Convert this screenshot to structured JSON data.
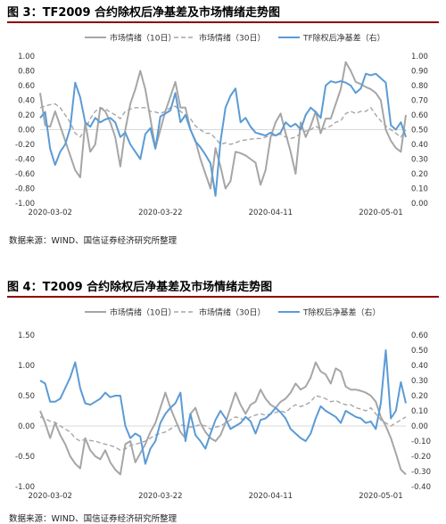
{
  "figures": [
    {
      "title": "图 3：TF2009 合约除权后净基差及市场情绪走势图",
      "source": "数据来源：WIND、国信证券经济研究所整理"
    },
    {
      "title": "图 4：T2009 合约除权后净基差及市场情绪走势图",
      "source": "数据来源：WIND、国信证券经济研究所整理"
    }
  ],
  "colors": {
    "gray": "#a6a6a6",
    "blue": "#5b9bd5",
    "title_rule": "#8b0000"
  },
  "chart_data": [
    {
      "type": "line",
      "x_ticks": [
        "2020-03-02",
        "2020-03-22",
        "2020-04-11",
        "2020-05-01"
      ],
      "y_left_ticks": [
        "-1.00",
        "-0.80",
        "-0.60",
        "-0.40",
        "-0.20",
        "0.00",
        "0.20",
        "0.40",
        "0.60",
        "0.80",
        "1.00"
      ],
      "y_right_ticks": [
        "0.00",
        "0.10",
        "0.20",
        "0.30",
        "0.40",
        "0.50",
        "0.60",
        "0.70",
        "0.80",
        "0.90",
        "1.00"
      ],
      "ylim_left": [
        -1.0,
        1.0
      ],
      "ylim_right": [
        0.0,
        1.0
      ],
      "legend_position": "top",
      "series": [
        {
          "name": "市场情绪（10日）",
          "axis": "left",
          "style": "solid",
          "color": "#a6a6a6",
          "x": [
            0,
            1,
            2,
            3,
            4,
            5,
            6,
            7,
            8,
            9,
            10,
            11,
            12,
            13,
            14,
            15,
            16,
            17,
            18,
            19,
            20,
            21,
            22,
            23,
            24,
            25,
            26,
            27,
            28,
            29,
            30,
            31,
            32,
            33,
            34,
            35,
            36,
            37,
            38,
            39,
            40,
            41,
            42,
            43,
            44,
            45,
            46,
            47,
            48,
            49,
            50,
            51,
            52,
            53,
            54,
            55,
            56,
            57,
            58,
            59,
            60,
            61,
            62,
            63,
            64,
            65,
            66,
            67,
            68,
            69,
            70,
            71,
            72,
            73
          ],
          "y": [
            0.5,
            0.06,
            0.04,
            0.25,
            0.05,
            -0.15,
            -0.35,
            -0.55,
            -0.65,
            0.1,
            -0.3,
            -0.2,
            0.3,
            0.25,
            0.1,
            -0.1,
            -0.5,
            0.0,
            0.35,
            0.55,
            0.8,
            0.55,
            0.15,
            -0.25,
            0.0,
            0.25,
            0.45,
            0.65,
            0.3,
            0.3,
            0.0,
            -0.15,
            -0.4,
            -0.6,
            -0.8,
            -0.25,
            -0.5,
            -0.8,
            -0.7,
            -0.3,
            -0.32,
            -0.35,
            -0.4,
            -0.45,
            -0.75,
            -0.55,
            -0.1,
            0.1,
            0.22,
            -0.05,
            -0.3,
            -0.6,
            0.1,
            -0.1,
            0.05,
            0.25,
            -0.05,
            0.15,
            0.15,
            0.35,
            0.55,
            0.92,
            0.8,
            0.65,
            0.62,
            0.58,
            0.55,
            0.5,
            0.4,
            0.0,
            -0.15,
            -0.25,
            -0.3,
            0.2
          ]
        },
        {
          "name": "市场情绪（30日）",
          "axis": "left",
          "style": "dashed",
          "color": "#a6a6a6",
          "x": [
            0,
            1,
            2,
            3,
            4,
            5,
            6,
            7,
            8,
            9,
            10,
            11,
            12,
            13,
            14,
            15,
            16,
            17,
            18,
            19,
            20,
            21,
            22,
            23,
            24,
            25,
            26,
            27,
            28,
            29,
            30,
            31,
            32,
            33,
            34,
            35,
            36,
            37,
            38,
            39,
            40,
            41,
            42,
            43,
            44,
            45,
            46,
            47,
            48,
            49,
            50,
            51,
            52,
            53,
            54,
            55,
            56,
            57,
            58,
            59,
            60,
            61,
            62,
            63,
            64,
            65,
            66,
            67,
            68,
            69,
            70,
            71,
            72,
            73
          ],
          "y": [
            0.3,
            0.32,
            0.34,
            0.35,
            0.3,
            0.2,
            0.1,
            -0.05,
            -0.1,
            0.0,
            0.15,
            0.25,
            0.3,
            0.28,
            0.24,
            0.2,
            0.15,
            0.25,
            0.28,
            0.3,
            0.3,
            0.3,
            0.25,
            0.24,
            0.22,
            0.25,
            0.3,
            0.32,
            0.25,
            0.2,
            0.15,
            0.05,
            0.0,
            -0.05,
            -0.05,
            -0.12,
            -0.2,
            -0.18,
            -0.2,
            -0.18,
            -0.15,
            -0.14,
            -0.13,
            -0.12,
            -0.12,
            -0.1,
            -0.08,
            -0.08,
            -0.06,
            -0.1,
            -0.12,
            -0.1,
            -0.05,
            -0.02,
            0.0,
            0.05,
            0.0,
            0.02,
            0.05,
            0.1,
            0.12,
            0.22,
            0.25,
            0.22,
            0.25,
            0.25,
            0.3,
            0.2,
            0.12,
            0.05,
            0.0,
            -0.05,
            -0.1,
            0.0
          ]
        },
        {
          "name": "TF除权后净基差（右）",
          "axis": "right",
          "style": "solid",
          "color": "#5b9bd5",
          "x": [
            0,
            1,
            2,
            3,
            4,
            5,
            6,
            7,
            8,
            9,
            10,
            11,
            12,
            13,
            14,
            15,
            16,
            17,
            18,
            19,
            20,
            21,
            22,
            23,
            24,
            25,
            26,
            27,
            28,
            29,
            30,
            31,
            32,
            33,
            34,
            35,
            36,
            37,
            38,
            39,
            40,
            41,
            42,
            43,
            44,
            45,
            46,
            47,
            48,
            49,
            50,
            51,
            52,
            53,
            54,
            55,
            56,
            57,
            58,
            59,
            60,
            61,
            62,
            63,
            64,
            65,
            66,
            67,
            68,
            69,
            70,
            71,
            72,
            73
          ],
          "y": [
            0.58,
            0.62,
            0.37,
            0.26,
            0.35,
            0.4,
            0.51,
            0.82,
            0.72,
            0.55,
            0.52,
            0.58,
            0.55,
            0.57,
            0.58,
            0.55,
            0.45,
            0.48,
            0.4,
            0.35,
            0.3,
            0.47,
            0.51,
            0.37,
            0.59,
            0.61,
            0.63,
            0.75,
            0.55,
            0.6,
            0.5,
            0.42,
            0.38,
            0.33,
            0.27,
            0.05,
            0.42,
            0.65,
            0.73,
            0.78,
            0.55,
            0.58,
            0.52,
            0.48,
            0.47,
            0.46,
            0.48,
            0.46,
            0.48,
            0.55,
            0.52,
            0.54,
            0.5,
            0.6,
            0.65,
            0.62,
            0.58,
            0.8,
            0.83,
            0.82,
            0.83,
            0.82,
            0.8,
            0.75,
            0.78,
            0.88,
            0.87,
            0.88,
            0.85,
            0.82,
            0.53,
            0.5,
            0.55,
            0.45
          ]
        }
      ]
    },
    {
      "type": "line",
      "x_ticks": [
        "2020-03-02",
        "2020-03-22",
        "2020-04-11",
        "2020-05-01"
      ],
      "y_left_ticks": [
        "-1.00",
        "-0.50",
        "0.00",
        "0.50",
        "1.00",
        "1.50"
      ],
      "y_right_ticks": [
        "-0.40",
        "-0.30",
        "-0.20",
        "-0.10",
        "0.00",
        "0.10",
        "0.20",
        "0.30",
        "0.40",
        "0.50",
        "0.60"
      ],
      "ylim_left": [
        -1.0,
        1.5
      ],
      "ylim_right": [
        -0.4,
        0.6
      ],
      "legend_position": "top",
      "series": [
        {
          "name": "市场情绪（10日）",
          "axis": "left",
          "style": "solid",
          "color": "#a6a6a6",
          "x": [
            0,
            1,
            2,
            3,
            4,
            5,
            6,
            7,
            8,
            9,
            10,
            11,
            12,
            13,
            14,
            15,
            16,
            17,
            18,
            19,
            20,
            21,
            22,
            23,
            24,
            25,
            26,
            27,
            28,
            29,
            30,
            31,
            32,
            33,
            34,
            35,
            36,
            37,
            38,
            39,
            40,
            41,
            42,
            43,
            44,
            45,
            46,
            47,
            48,
            49,
            50,
            51,
            52,
            53,
            54,
            55,
            56,
            57,
            58,
            59,
            60,
            61,
            62,
            63,
            64,
            65,
            66,
            67,
            68,
            69,
            70,
            71,
            72,
            73
          ],
          "y": [
            0.25,
            0.05,
            -0.2,
            0.05,
            -0.15,
            -0.3,
            -0.5,
            -0.62,
            -0.7,
            -0.2,
            -0.4,
            -0.5,
            -0.55,
            -0.4,
            -0.6,
            -0.72,
            -0.8,
            -0.3,
            -0.25,
            -0.6,
            -0.45,
            -0.3,
            -0.1,
            0.05,
            0.3,
            0.55,
            0.3,
            0.1,
            -0.1,
            -0.2,
            0.2,
            0.3,
            0.05,
            -0.1,
            -0.2,
            -0.25,
            -0.15,
            0.05,
            0.3,
            0.55,
            0.35,
            0.2,
            0.35,
            0.4,
            0.6,
            0.45,
            0.35,
            0.3,
            0.4,
            0.45,
            0.55,
            0.7,
            0.6,
            0.65,
            0.8,
            1.05,
            0.9,
            0.85,
            0.7,
            0.95,
            0.9,
            0.65,
            0.6,
            0.6,
            0.58,
            0.55,
            0.5,
            0.4,
            0.15,
            0.0,
            -0.2,
            -0.45,
            -0.72,
            -0.8
          ]
        },
        {
          "name": "市场情绪（30日）",
          "axis": "left",
          "style": "dashed",
          "color": "#a6a6a6",
          "x": [
            0,
            1,
            2,
            3,
            4,
            5,
            6,
            7,
            8,
            9,
            10,
            11,
            12,
            13,
            14,
            15,
            16,
            17,
            18,
            19,
            20,
            21,
            22,
            23,
            24,
            25,
            26,
            27,
            28,
            29,
            30,
            31,
            32,
            33,
            34,
            35,
            36,
            37,
            38,
            39,
            40,
            41,
            42,
            43,
            44,
            45,
            46,
            47,
            48,
            49,
            50,
            51,
            52,
            53,
            54,
            55,
            56,
            57,
            58,
            59,
            60,
            61,
            62,
            63,
            64,
            65,
            66,
            67,
            68,
            69,
            70,
            71,
            72,
            73
          ],
          "y": [
            0.15,
            0.12,
            0.08,
            0.06,
            0.0,
            -0.05,
            -0.1,
            -0.2,
            -0.25,
            -0.22,
            -0.24,
            -0.25,
            -0.28,
            -0.3,
            -0.32,
            -0.35,
            -0.4,
            -0.38,
            -0.32,
            -0.3,
            -0.28,
            -0.25,
            -0.2,
            -0.15,
            -0.12,
            -0.1,
            -0.05,
            0.0,
            0.02,
            0.0,
            -0.02,
            0.0,
            0.02,
            0.0,
            -0.05,
            -0.02,
            0.0,
            0.05,
            0.1,
            0.15,
            0.12,
            0.1,
            0.15,
            0.18,
            0.2,
            0.18,
            0.2,
            0.22,
            0.25,
            0.22,
            0.3,
            0.35,
            0.32,
            0.35,
            0.4,
            0.5,
            0.48,
            0.45,
            0.4,
            0.42,
            0.38,
            0.35,
            0.35,
            0.3,
            0.28,
            0.25,
            0.3,
            0.2,
            0.1,
            0.05,
            0.0,
            0.05,
            0.1,
            0.15
          ]
        },
        {
          "name": "T除权后净基差（右）",
          "axis": "right",
          "style": "solid",
          "color": "#5b9bd5",
          "x": [
            0,
            1,
            2,
            3,
            4,
            5,
            6,
            7,
            8,
            9,
            10,
            11,
            12,
            13,
            14,
            15,
            16,
            17,
            18,
            19,
            20,
            21,
            22,
            23,
            24,
            25,
            26,
            27,
            28,
            29,
            30,
            31,
            32,
            33,
            34,
            35,
            36,
            37,
            38,
            39,
            40,
            41,
            42,
            43,
            44,
            45,
            46,
            47,
            48,
            49,
            50,
            51,
            52,
            53,
            54,
            55,
            56,
            57,
            58,
            59,
            60,
            61,
            62,
            63,
            64,
            65,
            66,
            67,
            68,
            69,
            70,
            71,
            72,
            73
          ],
          "y": [
            0.3,
            0.28,
            0.16,
            0.16,
            0.18,
            0.25,
            0.32,
            0.42,
            0.25,
            0.15,
            0.14,
            0.16,
            0.18,
            0.22,
            0.19,
            0.2,
            0.2,
            0.0,
            -0.08,
            -0.05,
            -0.07,
            -0.25,
            -0.15,
            -0.1,
            0.02,
            0.08,
            0.12,
            0.15,
            0.22,
            -0.1,
            0.08,
            -0.06,
            -0.1,
            -0.15,
            -0.05,
            0.04,
            0.1,
            0.05,
            -0.02,
            0.0,
            0.02,
            0.06,
            0.03,
            -0.05,
            0.04,
            0.05,
            0.08,
            0.12,
            0.09,
            0.05,
            -0.02,
            -0.05,
            -0.08,
            -0.1,
            -0.05,
            0.05,
            0.13,
            0.1,
            0.08,
            0.06,
            0.02,
            0.1,
            0.08,
            0.06,
            0.05,
            0.02,
            0.03,
            -0.02,
            0.15,
            0.5,
            0.05,
            0.1,
            0.29,
            0.15
          ]
        }
      ]
    }
  ]
}
